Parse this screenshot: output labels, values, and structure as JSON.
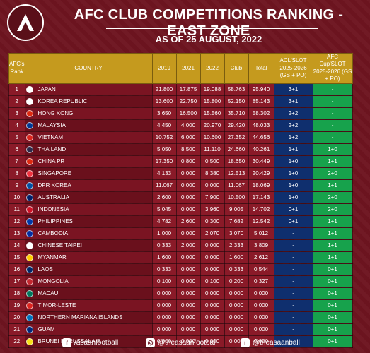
{
  "header": {
    "logo_text": "A",
    "title": "AFC CLUB COMPETITIONS RANKING - EAST ZONE",
    "subtitle": "AS OF 25 AUGUST, 2022"
  },
  "table": {
    "columns": [
      "AFC's Rank",
      "COUNTRY",
      "2019",
      "2021",
      "2022",
      "Club",
      "Total",
      "ACL'SLOT 2025-2026 (GS + PO)",
      "AFC Cup'SLOT 2025-2026 (GS + PO)"
    ],
    "rows": [
      {
        "rank": "1",
        "country": "JAPAN",
        "flag": "#ffffff",
        "y2019": "21.800",
        "y2021": "17.875",
        "y2022": "19.088",
        "club": "58.763",
        "total": "95.940",
        "acl": "3+1",
        "cup": "-",
        "cup_green": true
      },
      {
        "rank": "2",
        "country": "KOREA REPUBLIC",
        "flag": "#ffffff",
        "y2019": "13.600",
        "y2021": "22.750",
        "y2022": "15.800",
        "club": "52.150",
        "total": "85.143",
        "acl": "3+1",
        "cup": "-",
        "cup_green": true
      },
      {
        "rank": "3",
        "country": "HONG KONG",
        "flag": "#de2910",
        "y2019": "3.650",
        "y2021": "16.500",
        "y2022": "15.560",
        "club": "35.710",
        "total": "58.302",
        "acl": "2+2",
        "cup": "-",
        "cup_green": true
      },
      {
        "rank": "4",
        "country": "MALAYSIA",
        "flag": "#003893",
        "y2019": "4.450",
        "y2021": "4.000",
        "y2022": "20.970",
        "club": "29.420",
        "total": "48.033",
        "acl": "2+2",
        "cup": "-",
        "cup_green": true
      },
      {
        "rank": "5",
        "country": "VIETNAM",
        "flag": "#da251d",
        "y2019": "10.752",
        "y2021": "6.000",
        "y2022": "10.600",
        "club": "27.352",
        "total": "44.656",
        "acl": "1+2",
        "cup": "-",
        "cup_green": true
      },
      {
        "rank": "6",
        "country": "THAILAND",
        "flag": "#2d2a4a",
        "y2019": "5.050",
        "y2021": "8.500",
        "y2022": "11.110",
        "club": "24.660",
        "total": "40.261",
        "acl": "1+1",
        "cup": "1+0",
        "cup_green": true
      },
      {
        "rank": "7",
        "country": "CHINA PR",
        "flag": "#de2910",
        "y2019": "17.350",
        "y2021": "0.800",
        "y2022": "0.500",
        "club": "18.650",
        "total": "30.449",
        "acl": "1+0",
        "cup": "1+1",
        "cup_green": true
      },
      {
        "rank": "8",
        "country": "SINGAPORE",
        "flag": "#ef3340",
        "y2019": "4.133",
        "y2021": "0.000",
        "y2022": "8.380",
        "club": "12.513",
        "total": "20.429",
        "acl": "1+0",
        "cup": "2+0",
        "cup_green": true
      },
      {
        "rank": "9",
        "country": "DPR KOREA",
        "flag": "#024fa2",
        "y2019": "11.067",
        "y2021": "0.000",
        "y2022": "0.000",
        "club": "11.067",
        "total": "18.069",
        "acl": "1+0",
        "cup": "1+1",
        "cup_green": true
      },
      {
        "rank": "10",
        "country": "AUSTRALIA",
        "flag": "#012169",
        "y2019": "2.600",
        "y2021": "0.000",
        "y2022": "7.900",
        "club": "10.500",
        "total": "17.143",
        "acl": "1+0",
        "cup": "2+0",
        "cup_green": true
      },
      {
        "rank": "11",
        "country": "INDONESIA",
        "flag": "#ce1126",
        "y2019": "5.045",
        "y2021": "0.000",
        "y2022": "3.960",
        "club": "9.005",
        "total": "14.702",
        "acl": "0+1",
        "cup": "2+0",
        "cup_green": true
      },
      {
        "rank": "12",
        "country": "PHILIPPINES",
        "flag": "#0038a8",
        "y2019": "4.782",
        "y2021": "2.600",
        "y2022": "0.300",
        "club": "7.682",
        "total": "12.542",
        "acl": "0+1",
        "cup": "1+1",
        "cup_green": true
      },
      {
        "rank": "13",
        "country": "CAMBODIA",
        "flag": "#032ea1",
        "y2019": "1.000",
        "y2021": "0.000",
        "y2022": "2.070",
        "club": "3.070",
        "total": "5.012",
        "acl": "-",
        "cup": "1+1",
        "cup_green": true
      },
      {
        "rank": "14",
        "country": "CHINESE TAIPEI",
        "flag": "#ffffff",
        "y2019": "0.333",
        "y2021": "2.000",
        "y2022": "0.000",
        "club": "2.333",
        "total": "3.809",
        "acl": "-",
        "cup": "1+1",
        "cup_green": true
      },
      {
        "rank": "15",
        "country": "MYANMAR",
        "flag": "#fecb00",
        "y2019": "1.600",
        "y2021": "0.000",
        "y2022": "0.000",
        "club": "1.600",
        "total": "2.612",
        "acl": "-",
        "cup": "1+1",
        "cup_green": true
      },
      {
        "rank": "16",
        "country": "LAOS",
        "flag": "#002868",
        "y2019": "0.333",
        "y2021": "0.000",
        "y2022": "0.000",
        "club": "0.333",
        "total": "0.544",
        "acl": "-",
        "cup": "0+1",
        "cup_green": true
      },
      {
        "rank": "17",
        "country": "MONGOLIA",
        "flag": "#c4272f",
        "y2019": "0.100",
        "y2021": "0.000",
        "y2022": "0.100",
        "club": "0.200",
        "total": "0.327",
        "acl": "-",
        "cup": "0+1",
        "cup_green": true
      },
      {
        "rank": "18",
        "country": "MACAU",
        "flag": "#00785e",
        "y2019": "0.000",
        "y2021": "0.000",
        "y2022": "0.000",
        "club": "0.000",
        "total": "0.000",
        "acl": "-",
        "cup": "0+1",
        "cup_green": true
      },
      {
        "rank": "19",
        "country": "TIMOR-LESTE",
        "flag": "#dc241f",
        "y2019": "0.000",
        "y2021": "0.000",
        "y2022": "0.000",
        "club": "0.000",
        "total": "0.000",
        "acl": "-",
        "cup": "0+1",
        "cup_green": true
      },
      {
        "rank": "20",
        "country": "NORTHERN MARIANA ISLANDS",
        "flag": "#0071bc",
        "y2019": "0.000",
        "y2021": "0.000",
        "y2022": "0.000",
        "club": "0.000",
        "total": "0.000",
        "acl": "-",
        "cup": "0+1",
        "cup_green": true
      },
      {
        "rank": "21",
        "country": "GUAM",
        "flag": "#00297b",
        "y2019": "0.000",
        "y2021": "0.000",
        "y2022": "0.000",
        "club": "0.000",
        "total": "0.000",
        "acl": "-",
        "cup": "0+1",
        "cup_green": true
      },
      {
        "rank": "22",
        "country": "BRUNEI DARUSSALAM",
        "flag": "#f7e017",
        "y2019": "0.000",
        "y2021": "0.000",
        "y2022": "0.000",
        "club": "0.000",
        "total": "0.000",
        "acl": "-",
        "cup": "0+1",
        "cup_green": true
      }
    ]
  },
  "footer": {
    "facebook": "/asaanfootball",
    "instagram": "@theasaanfootball",
    "twitter": "@theasaanball"
  },
  "icons": {
    "facebook": "facebook-icon",
    "instagram": "instagram-icon",
    "twitter": "twitter-icon"
  },
  "colors": {
    "background": "#6e1420",
    "header_gold": "#c59a1e",
    "acl_blue": "#0f2f6e",
    "cup_green": "#17a24c"
  }
}
